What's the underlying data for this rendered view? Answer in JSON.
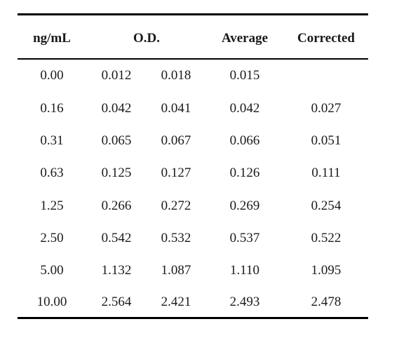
{
  "table": {
    "headers": {
      "conc": "ng/mL",
      "od": "O.D.",
      "average": "Average",
      "corrected": "Corrected"
    },
    "rows": [
      {
        "conc": "0.00",
        "od1": "0.012",
        "od2": "0.018",
        "average": "0.015",
        "corrected": ""
      },
      {
        "conc": "0.16",
        "od1": "0.042",
        "od2": "0.041",
        "average": "0.042",
        "corrected": "0.027"
      },
      {
        "conc": "0.31",
        "od1": "0.065",
        "od2": "0.067",
        "average": "0.066",
        "corrected": "0.051"
      },
      {
        "conc": "0.63",
        "od1": "0.125",
        "od2": "0.127",
        "average": "0.126",
        "corrected": "0.111"
      },
      {
        "conc": "1.25",
        "od1": "0.266",
        "od2": "0.272",
        "average": "0.269",
        "corrected": "0.254"
      },
      {
        "conc": "2.50",
        "od1": "0.542",
        "od2": "0.532",
        "average": "0.537",
        "corrected": "0.522"
      },
      {
        "conc": "5.00",
        "od1": "1.132",
        "od2": "1.087",
        "average": "1.110",
        "corrected": "1.095"
      },
      {
        "conc": "10.00",
        "od1": "2.564",
        "od2": "2.421",
        "average": "2.493",
        "corrected": "2.478"
      }
    ]
  }
}
